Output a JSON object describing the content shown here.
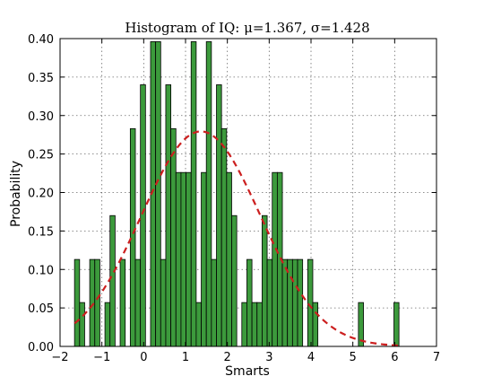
{
  "chart_data": {
    "type": "bar",
    "title": "Histogram of IQ: μ=1.367, σ=1.428",
    "xlabel": "Smarts",
    "ylabel": "Probability",
    "xlim": [
      -2,
      7
    ],
    "ylim": [
      0,
      0.4
    ],
    "xticks": [
      -2,
      -1,
      0,
      1,
      2,
      3,
      4,
      5,
      6,
      7
    ],
    "xtick_labels": [
      "−2",
      "−1",
      "0",
      "1",
      "2",
      "3",
      "4",
      "5",
      "6",
      "7"
    ],
    "yticks": [
      0,
      0.05,
      0.1,
      0.15,
      0.2,
      0.25,
      0.3,
      0.35,
      0.4
    ],
    "ytick_labels": [
      "0.00",
      "0.05",
      "0.10",
      "0.15",
      "0.20",
      "0.25",
      "0.30",
      "0.35",
      "0.40"
    ],
    "grid": true,
    "bins": {
      "start": -1.654,
      "width": 0.1212,
      "values": [
        0.113,
        0.057,
        0,
        0.113,
        0.113,
        0,
        0.057,
        0.17,
        0,
        0.113,
        0,
        0.283,
        0.113,
        0.34,
        0,
        0.396,
        0.396,
        0.113,
        0.34,
        0.283,
        0.226,
        0.226,
        0.226,
        0.396,
        0.057,
        0.226,
        0.396,
        0.113,
        0.34,
        0.283,
        0.226,
        0.17,
        0,
        0.057,
        0.113,
        0.057,
        0.057,
        0.17,
        0.113,
        0.226,
        0.226,
        0.113,
        0.113,
        0.113,
        0.113,
        0,
        0.113,
        0.057,
        0,
        0,
        0,
        0,
        0,
        0,
        0,
        0,
        0.057,
        0,
        0,
        0,
        0,
        0,
        0,
        0.057
      ]
    },
    "curve": {
      "type": "normal-pdf",
      "mu": 1.367,
      "sigma": 1.428,
      "x_range": [
        -1.65,
        6.1
      ],
      "color": "#cc1f1f",
      "style": "dashed"
    },
    "bar_color": "#3c9a3c"
  }
}
